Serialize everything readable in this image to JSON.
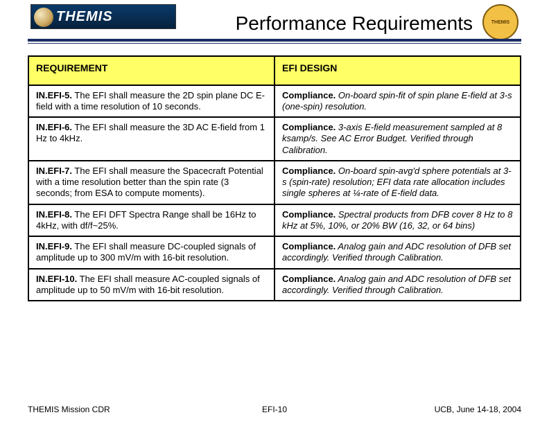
{
  "logo_text": "THEMIS",
  "title": "Performance Requirements",
  "table": {
    "header_bg": "#ffff66",
    "border_color": "#000000",
    "col1_header": "REQUIREMENT",
    "col2_header": "EFI DESIGN",
    "font_size_pt": 13,
    "header_font_size_pt": 14,
    "rows": [
      {
        "id": "IN.EFI-5.",
        "req": " The EFI shall measure the 2D spin plane DC E-field with a time resolution of 10 seconds.",
        "comp": "Compliance.",
        "des": " On-board spin-fit of spin plane E-field at 3-s (one-spin) resolution."
      },
      {
        "id": "IN.EFI-6.",
        "req": " The EFI shall measure the 3D AC E-field from 1 Hz to 4kHz.",
        "comp": "Compliance.",
        "des": " 3-axis E-field measurement sampled at 8 ksamp/s.  See AC Error Budget.  Verified through Calibration."
      },
      {
        "id": "IN.EFI-7.",
        "req": " The EFI shall measure the Spacecraft Potential with a time resolution better than the spin rate (3 seconds; from ESA to compute moments).",
        "comp": "Compliance.",
        "des": " On-board spin-avg'd sphere potentials at 3-s (spin-rate) resolution; EFI data rate allocation includes single spheres at ¼-rate of E-field data."
      },
      {
        "id": "IN.EFI-8.",
        "req": " The EFI DFT Spectra Range shall be 16Hz to 4kHz, with df/f~25%.",
        "comp": "Compliance.",
        "des": " Spectral products from DFB cover 8 Hz to 8 kHz at 5%, 10%, or 20% BW (16, 32, or 64 bins)"
      },
      {
        "id": "IN.EFI-9.",
        "req": " The EFI shall measure DC-coupled signals of amplitude up to 300 mV/m with 16-bit resolution.",
        "comp": "Compliance.",
        "des": " Analog gain and ADC resolution of DFB set accordingly.  Verified through Calibration."
      },
      {
        "id": "IN.EFI-10.",
        "req": " The EFI shall measure AC-coupled signals of amplitude up to 50 mV/m with 16-bit resolution.",
        "comp": "Compliance.",
        "des": " Analog gain and ADC resolution of DFB set accordingly. Verified through Calibration."
      }
    ]
  },
  "footer": {
    "left": "THEMIS Mission CDR",
    "center_prefix": "EFI-",
    "center_num": "10",
    "right": "UCB, June 14-18, 2004"
  },
  "colors": {
    "rule": "#1a2e66",
    "logo_bg_top": "#0a3a6a",
    "logo_bg_bot": "#06223d",
    "circ_bg": "#f2c044"
  }
}
